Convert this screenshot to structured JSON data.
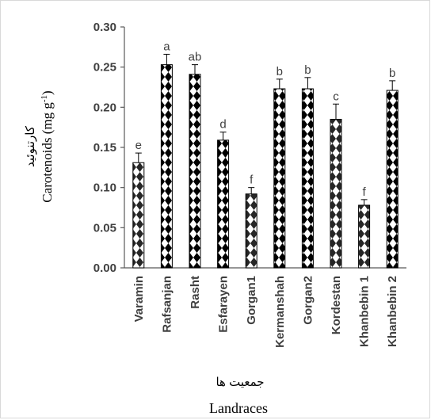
{
  "chart_data": {
    "type": "bar",
    "categories": [
      "Varamin",
      "Rafsanjan",
      "Rasht",
      "Esfarayen",
      "Gorgan1",
      "Kermanshah",
      "Gorgan2",
      "Kordestan",
      "Khanbebin 1",
      "Khanbebin 2"
    ],
    "values": [
      0.131,
      0.253,
      0.241,
      0.159,
      0.092,
      0.223,
      0.223,
      0.185,
      0.078,
      0.221
    ],
    "errors": [
      0.012,
      0.013,
      0.012,
      0.01,
      0.008,
      0.012,
      0.014,
      0.019,
      0.007,
      0.012
    ],
    "letters": [
      "e",
      "a",
      "ab",
      "d",
      "f",
      "b",
      "b",
      "c",
      "f",
      "b"
    ],
    "fill_pattern": [
      "light",
      "dark",
      "dark",
      "dark",
      "light",
      "dark",
      "dark",
      "light",
      "light",
      "dark"
    ],
    "ylim": [
      0,
      0.3
    ],
    "yticks": [
      "0.00",
      "0.05",
      "0.10",
      "0.15",
      "0.20",
      "0.25",
      "0.30"
    ],
    "ylabel_persian": "کارتنوئید",
    "ylabel": "Carotenoids (mg g",
    "ylabel_sup": "-1",
    "ylabel_close": ")",
    "xlabel_persian": "جمعیت ها",
    "xlabel": "Landraces",
    "grid": false,
    "colors": {
      "axis": "#595959",
      "text": "#404040",
      "bar_dark": "#000000",
      "bar_light": "#ffffff"
    }
  }
}
